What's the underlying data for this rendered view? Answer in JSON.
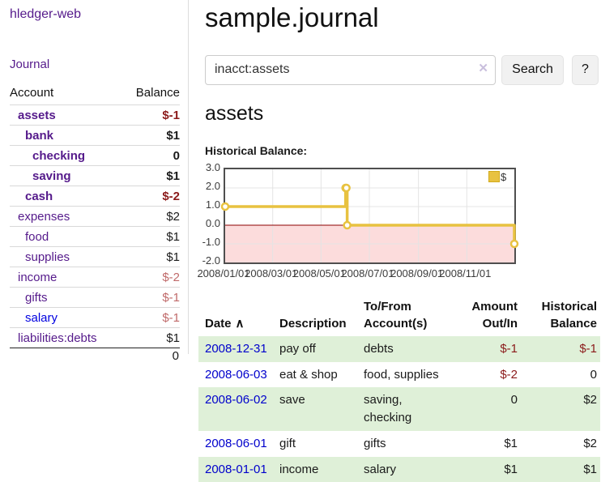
{
  "colors": {
    "accent_purple": "#551a8b",
    "link_blue": "#0000cc",
    "negative_strong": "#8b1a1a",
    "negative_dim": "#c06a6a",
    "row_stripe_green": "#dff0d8",
    "series_gold": "#e8c240"
  },
  "sidebar": {
    "app_title": "hledger-web",
    "journal_label": "Journal",
    "accounts_table": {
      "headers": {
        "account": "Account",
        "balance": "Balance"
      },
      "rows": [
        {
          "name": "assets",
          "balance": "$-1",
          "depth": 1,
          "bold": true
        },
        {
          "name": "bank",
          "balance": "$1",
          "depth": 2,
          "bold": true
        },
        {
          "name": "checking",
          "balance": "0",
          "depth": 3,
          "bold": true
        },
        {
          "name": "saving",
          "balance": "$1",
          "depth": 3,
          "bold": true
        },
        {
          "name": "cash",
          "balance": "$-2",
          "depth": 2,
          "bold": true
        },
        {
          "name": "expenses",
          "balance": "$2",
          "depth": 1,
          "bold": false
        },
        {
          "name": "food",
          "balance": "$1",
          "depth": 2,
          "bold": false
        },
        {
          "name": "supplies",
          "balance": "$1",
          "depth": 2,
          "bold": false
        },
        {
          "name": "income",
          "balance": "$-2",
          "depth": 1,
          "bold": false
        },
        {
          "name": "gifts",
          "balance": "$-1",
          "depth": 2,
          "bold": false
        },
        {
          "name": "salary",
          "balance": "$-1",
          "depth": 2,
          "bold": false,
          "blue": true
        },
        {
          "name": "liabilities:debts",
          "balance": "$1",
          "depth": 1,
          "bold": false
        }
      ],
      "total": "0"
    }
  },
  "main": {
    "title": "sample.journal",
    "search": {
      "query": "inacct:assets",
      "clear_icon": "✕",
      "button_label": "Search",
      "help_label": "?"
    },
    "account_heading": "assets",
    "chart_label": "Historical Balance:"
  },
  "chart_data": {
    "type": "line",
    "title": "Historical Balance",
    "steps": true,
    "series": [
      {
        "name": "$",
        "color": "#e8c240",
        "points": [
          [
            "2008-01-01",
            1
          ],
          [
            "2008-06-01",
            2
          ],
          [
            "2008-06-02",
            2
          ],
          [
            "2008-06-03",
            0
          ],
          [
            "2008-12-31",
            -1
          ]
        ]
      }
    ],
    "xlim": [
      "2008-01-01",
      "2008-12-31"
    ],
    "ylim": [
      -2,
      3
    ],
    "y_ticks": [
      3,
      2,
      1,
      0,
      -1,
      -2
    ],
    "x_ticks": [
      "2008/01/01",
      "2008/03/01",
      "2008/05/01",
      "2008/07/01",
      "2008/09/01",
      "2008/11/01"
    ],
    "grid": true,
    "grid_color": "#e4e4e4",
    "legend_position": "top-right",
    "negative_region_color": "#fcdcdc",
    "zero_line_color": "#8b0000"
  },
  "register": {
    "headers": {
      "date": "Date",
      "sort_icon": "∧",
      "description": "Description",
      "accounts": "To/From Account(s)",
      "amount": "Amount Out/In",
      "balance": "Historical Balance"
    },
    "rows": [
      {
        "date": "2008-12-31",
        "description": "pay off",
        "accounts": "debts",
        "amount": "$-1",
        "balance": "$-1"
      },
      {
        "date": "2008-06-03",
        "description": "eat & shop",
        "accounts": "food, supplies",
        "amount": "$-2",
        "balance": "0"
      },
      {
        "date": "2008-06-02",
        "description": "save",
        "accounts": "saving, checking",
        "amount": "0",
        "balance": "$2"
      },
      {
        "date": "2008-06-01",
        "description": "gift",
        "accounts": "gifts",
        "amount": "$1",
        "balance": "$2"
      },
      {
        "date": "2008-01-01",
        "description": "income",
        "accounts": "salary",
        "amount": "$1",
        "balance": "$1"
      }
    ]
  }
}
